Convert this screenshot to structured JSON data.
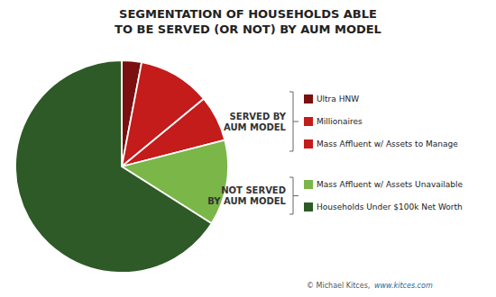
{
  "chart_data": {
    "type": "pie",
    "title": "SEGMENTATION OF HOUSEHOLDS ABLE",
    "subtitle": "TO BE SERVED (OR NOT) BY AUM MODEL",
    "categories": [
      "Ultra HNW",
      "Millionaires",
      "Mass Affluent w/ Assets to Manage",
      "Mass Affluent w/ Assets Unavailable",
      "Households Under $100k Net Worth"
    ],
    "values": [
      3,
      11,
      7,
      13,
      66
    ],
    "colors": [
      "#7a1010",
      "#c41b1b",
      "#c41b1b",
      "#7ab648",
      "#2d5a27"
    ],
    "legend": "right",
    "annotations": [
      "SERVED BY",
      "AUM MODEL",
      "NOT SERVED",
      "BY AUM MODEL",
      "© Michael Kitces, ",
      "www.kitces.com"
    ]
  }
}
